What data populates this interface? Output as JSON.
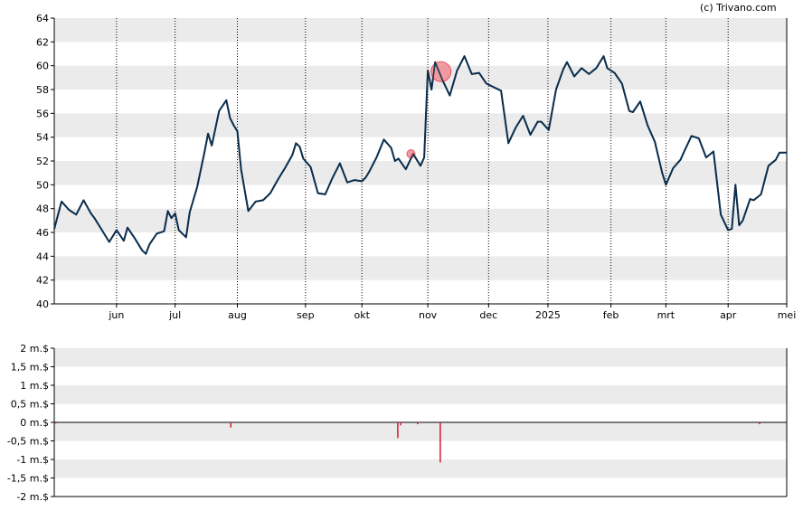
{
  "copyright": "(c) Trivano.com",
  "colors": {
    "band": "#ebebeb",
    "line": "#0b2f4e",
    "marker": "#e8505b",
    "marker_fill": "#f08c94",
    "volume": "#d9182b",
    "axis": "#000000",
    "grid": "#000000"
  },
  "chart_data": [
    {
      "type": "line",
      "title": "",
      "ylim": [
        40,
        64
      ],
      "y_ticks": [
        "40",
        "42",
        "44",
        "46",
        "48",
        "50",
        "52",
        "54",
        "56",
        "58",
        "60",
        "62",
        "64"
      ],
      "x_ticks": [
        "jun",
        "jul",
        "aug",
        "sep",
        "okt",
        "nov",
        "dec",
        "2025",
        "feb",
        "mrt",
        "apr",
        "mei"
      ],
      "x_tick_positions": [
        0.085,
        0.165,
        0.25,
        0.343,
        0.42,
        0.51,
        0.593,
        0.674,
        0.76,
        0.835,
        0.92,
        1.0
      ],
      "grid": "vertical dotted at month ticks, alternating horizontal bands",
      "series": [
        {
          "t": [
            0.0,
            0.01,
            0.02,
            0.03,
            0.04,
            0.05,
            0.055,
            0.065,
            0.075,
            0.085,
            0.095,
            0.1,
            0.11,
            0.12,
            0.125,
            0.13,
            0.14,
            0.15,
            0.155,
            0.16,
            0.165,
            0.17,
            0.18,
            0.185,
            0.195,
            0.205,
            0.21,
            0.215,
            0.225,
            0.235,
            0.24,
            0.245,
            0.25,
            0.255,
            0.265,
            0.275,
            0.285,
            0.295,
            0.305,
            0.315,
            0.325,
            0.33,
            0.335,
            0.34,
            0.35,
            0.36,
            0.37,
            0.38,
            0.39,
            0.4,
            0.41,
            0.42,
            0.425,
            0.43,
            0.44,
            0.45,
            0.46,
            0.465,
            0.47,
            0.48,
            0.49,
            0.5,
            0.505,
            0.51,
            0.515,
            0.52,
            0.53,
            0.54,
            0.55,
            0.56,
            0.57,
            0.58,
            0.59,
            0.6,
            0.61,
            0.62,
            0.63,
            0.64,
            0.65,
            0.66,
            0.665,
            0.675,
            0.685,
            0.695,
            0.7,
            0.71,
            0.72,
            0.73,
            0.74,
            0.75,
            0.755,
            0.765,
            0.775,
            0.785,
            0.79,
            0.8,
            0.81,
            0.82,
            0.83,
            0.835,
            0.845,
            0.855,
            0.86,
            0.87,
            0.88,
            0.89,
            0.9,
            0.91,
            0.92,
            0.925,
            0.93,
            0.935,
            0.94,
            0.95,
            0.955,
            0.965,
            0.975,
            0.985,
            0.99,
            1.0
          ],
          "y": [
            46.3,
            48.6,
            47.9,
            47.5,
            48.7,
            47.6,
            47.2,
            46.2,
            45.2,
            46.2,
            45.3,
            46.4,
            45.5,
            44.5,
            44.2,
            45.0,
            45.9,
            46.1,
            47.8,
            47.2,
            47.6,
            46.2,
            45.6,
            47.7,
            49.8,
            52.7,
            54.3,
            53.3,
            56.2,
            57.1,
            55.6,
            55.0,
            54.5,
            51.3,
            47.8,
            48.6,
            48.7,
            49.3,
            50.4,
            51.4,
            52.5,
            53.5,
            53.2,
            52.2,
            51.5,
            49.3,
            49.2,
            50.6,
            51.8,
            50.2,
            50.4,
            50.3,
            50.6,
            51.1,
            52.3,
            53.8,
            53.1,
            52.0,
            52.2,
            51.3,
            52.6,
            51.6,
            52.3,
            59.6,
            58.0,
            60.3,
            58.8,
            57.5,
            59.6,
            60.8,
            59.3,
            59.4,
            58.5,
            58.2,
            57.9,
            53.5,
            54.8,
            55.8,
            54.2,
            55.3,
            55.3,
            54.6,
            58.0,
            59.7,
            60.3,
            59.1,
            59.8,
            59.3,
            59.8,
            60.8,
            59.8,
            59.4,
            58.5,
            56.2,
            56.1,
            57.0,
            55.0,
            53.6,
            51.0,
            50.0,
            51.4,
            52.1,
            52.8,
            54.1,
            53.9,
            52.3,
            52.8,
            47.5,
            46.2,
            46.3,
            50.0,
            46.6,
            47.0,
            48.8,
            48.7,
            49.2,
            51.6,
            52.1,
            52.7,
            52.7
          ]
        }
      ],
      "markers": [
        {
          "t": 0.487,
          "y": 52.6,
          "size": "small"
        },
        {
          "t": 0.528,
          "y": 59.5,
          "size": "large"
        }
      ]
    },
    {
      "type": "bar",
      "title": "",
      "ylim": [
        -2,
        2
      ],
      "y_ticks": [
        "2 m.$",
        "1,5 m.$",
        "1 m.$",
        "0,5 m.$",
        "0 m.$",
        "-0,5 m.$",
        "-1 m.$",
        "-1,5 m.$",
        "-2 m.$"
      ],
      "bars": [
        {
          "t": 0.002,
          "value": -0.03
        },
        {
          "t": 0.241,
          "value": -0.14
        },
        {
          "t": 0.469,
          "value": -0.42
        },
        {
          "t": 0.473,
          "value": -0.08
        },
        {
          "t": 0.496,
          "value": -0.05
        },
        {
          "t": 0.527,
          "value": -1.08
        },
        {
          "t": 0.963,
          "value": -0.05
        }
      ]
    }
  ]
}
